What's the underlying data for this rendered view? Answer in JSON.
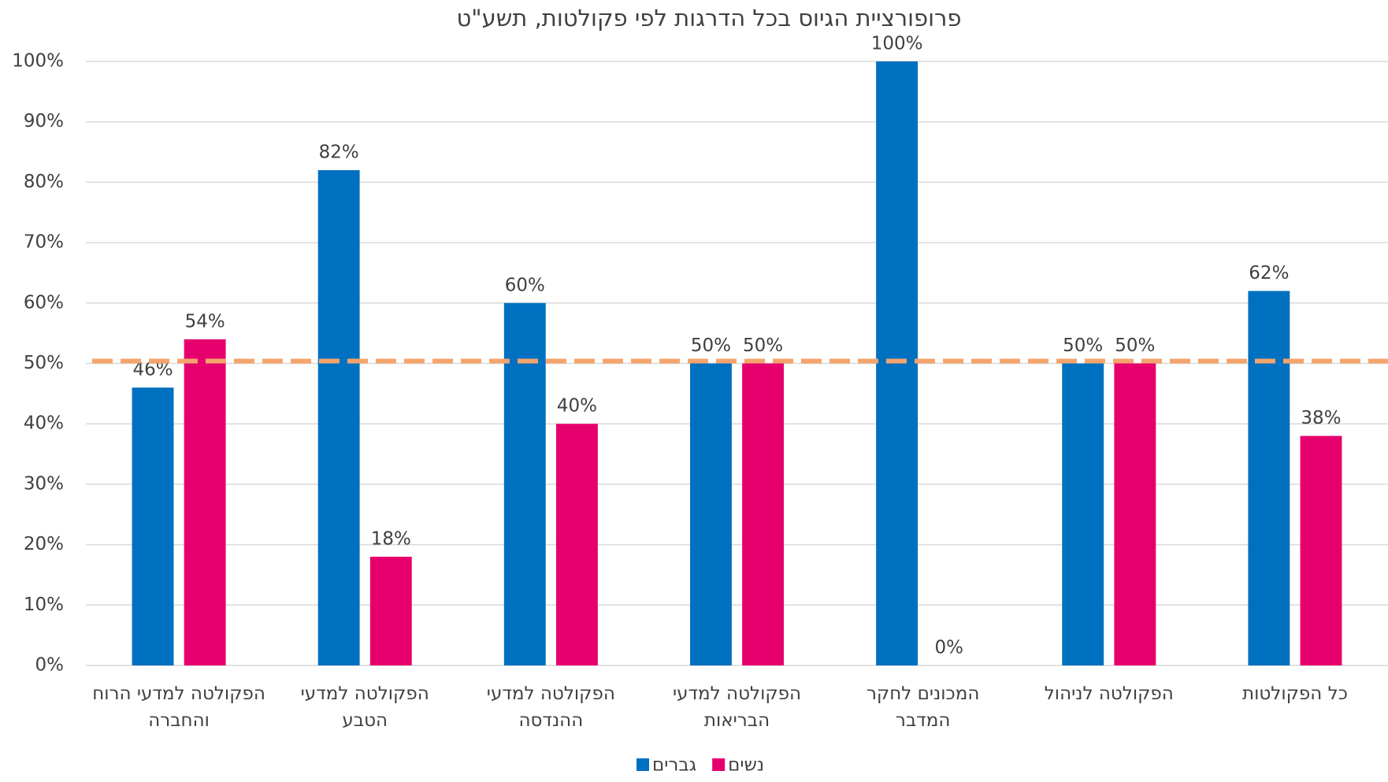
{
  "chart_data": {
    "type": "bar",
    "title": "פרופורציית הגיוס בכל הדרגות לפי פקולטות, תשע\"ט",
    "categories": [
      "הפקולטה למדעי הרוח והחברה",
      "הפקולטה למדעי הטבע",
      "הפקולטה למדעי ההנדסה",
      "הפקולטה למדעי הבריאות",
      "המכונים לחקר המדבר",
      "הפקולטה  לניהול",
      "כל הפקולטות"
    ],
    "series": [
      {
        "name": "גברים",
        "color": "#0070c0",
        "values": [
          46,
          82,
          60,
          50,
          100,
          50,
          62
        ],
        "value_labels": [
          "46%",
          "82%",
          "60%",
          "50%",
          "100%",
          "50%",
          "62%"
        ]
      },
      {
        "name": "נשים",
        "color": "#e6006e",
        "values": [
          54,
          18,
          40,
          50,
          0,
          50,
          38
        ],
        "value_labels": [
          "54%",
          "18%",
          "40%",
          "50%",
          "0%",
          "50%",
          "38%"
        ]
      }
    ],
    "ylim": [
      0,
      100
    ],
    "yticks": [
      {
        "value": 0,
        "label": "0%"
      },
      {
        "value": 10,
        "label": "10%"
      },
      {
        "value": 20,
        "label": "20%"
      },
      {
        "value": 30,
        "label": "30%"
      },
      {
        "value": 40,
        "label": "40%"
      },
      {
        "value": 50,
        "label": "50%"
      },
      {
        "value": 60,
        "label": "60%"
      },
      {
        "value": 70,
        "label": "70%"
      },
      {
        "value": 80,
        "label": "80%"
      },
      {
        "value": 90,
        "label": "90%"
      },
      {
        "value": 100,
        "label": "100%"
      }
    ],
    "grid": true,
    "reference_line": {
      "value": 50,
      "color": "#f4a46c"
    },
    "legend": "bottom"
  }
}
